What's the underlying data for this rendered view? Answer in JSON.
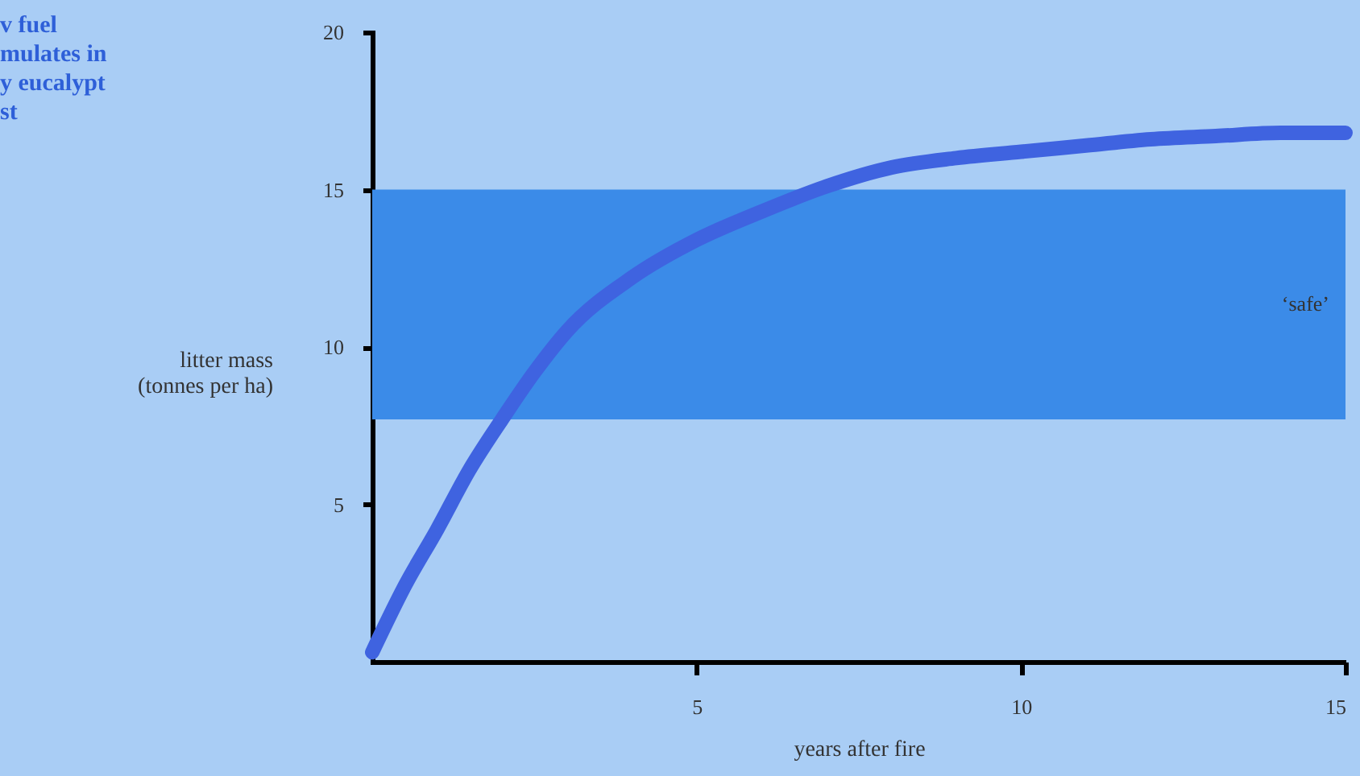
{
  "chart_data": {
    "type": "line",
    "title": "v fuel\nmulates in\ny eucalypt\nst",
    "xlabel": "years after fire",
    "ylabel": "litter mass\n(tonnes per ha)",
    "x": [
      0,
      0.5,
      1,
      1.5,
      2,
      2.5,
      3,
      4,
      5,
      6,
      7,
      8,
      9,
      10,
      11,
      12,
      13,
      14,
      15
    ],
    "series": [
      {
        "color": "#3f63e0",
        "values": [
          0.3,
          2.4,
          4.2,
          6.1,
          7.7,
          9.2,
          10.5,
          12.2,
          13.4,
          14.3,
          15.1,
          15.7,
          16.0,
          16.2,
          16.4,
          16.6,
          16.7,
          16.8,
          16.8
        ]
      }
    ],
    "xlim": [
      0,
      15
    ],
    "xticks": [
      5,
      10,
      15
    ],
    "ylim": [
      0,
      20
    ],
    "yticks": [
      5,
      10,
      15,
      20
    ],
    "bands": [
      {
        "axis": "y",
        "from": 7.7,
        "to": 15,
        "label": "‘safe’",
        "color": "#3b8be8"
      }
    ],
    "grid": false,
    "line_style": "solid"
  }
}
